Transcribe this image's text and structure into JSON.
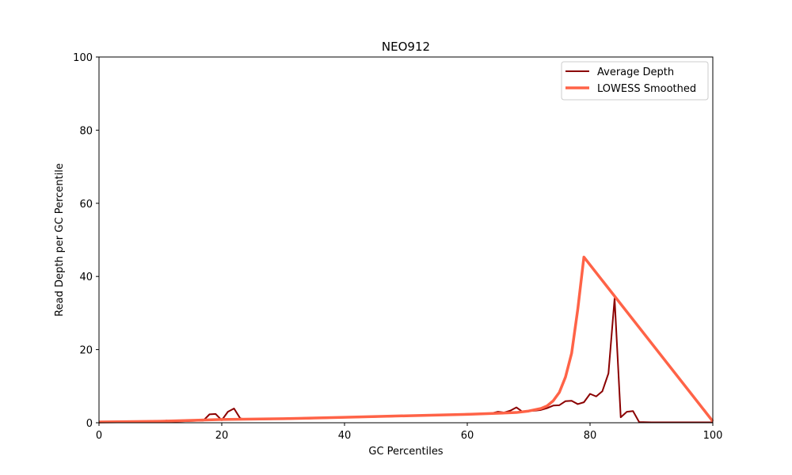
{
  "chart_data": {
    "type": "line",
    "title": "NEO912",
    "xlabel": "GC Percentiles",
    "ylabel": "Read Depth per GC Percentile",
    "xlim": [
      0,
      100
    ],
    "ylim": [
      0,
      100
    ],
    "xticks": [
      "0",
      "20",
      "40",
      "60",
      "80",
      "100"
    ],
    "yticks": [
      "0",
      "20",
      "40",
      "60",
      "80",
      "100"
    ],
    "grid": false,
    "legend_position": "top-right",
    "series": [
      {
        "name": "Average Depth",
        "color": "#8b0000",
        "points": [
          [
            0,
            0.1
          ],
          [
            5,
            0.2
          ],
          [
            10,
            0.3
          ],
          [
            11,
            0.6
          ],
          [
            12,
            0.3
          ],
          [
            15,
            0.5
          ],
          [
            17,
            0.6
          ],
          [
            18,
            2.3
          ],
          [
            19,
            2.4
          ],
          [
            20,
            0.7
          ],
          [
            21,
            3.0
          ],
          [
            22,
            3.9
          ],
          [
            23,
            1.2
          ],
          [
            24,
            0.9
          ],
          [
            30,
            1.0
          ],
          [
            40,
            1.4
          ],
          [
            50,
            1.8
          ],
          [
            60,
            2.4
          ],
          [
            64,
            2.6
          ],
          [
            65,
            3.0
          ],
          [
            66,
            2.8
          ],
          [
            67,
            3.3
          ],
          [
            68,
            4.2
          ],
          [
            69,
            3.0
          ],
          [
            70,
            3.2
          ],
          [
            71,
            3.3
          ],
          [
            72,
            3.5
          ],
          [
            73,
            4.0
          ],
          [
            74,
            4.7
          ],
          [
            75,
            4.8
          ],
          [
            76,
            5.9
          ],
          [
            77,
            6.0
          ],
          [
            78,
            5.1
          ],
          [
            79,
            5.6
          ],
          [
            80,
            7.9
          ],
          [
            81,
            7.2
          ],
          [
            82,
            8.6
          ],
          [
            83,
            13.5
          ],
          [
            84,
            34.0
          ],
          [
            85,
            1.5
          ],
          [
            86,
            3.0
          ],
          [
            87,
            3.2
          ],
          [
            88,
            0.2
          ],
          [
            90,
            0.1
          ],
          [
            95,
            0.1
          ],
          [
            100,
            0.1
          ]
        ]
      },
      {
        "name": "LOWESS Smoothed",
        "color": "#ff6347",
        "points": [
          [
            0,
            0.2
          ],
          [
            10,
            0.4
          ],
          [
            20,
            0.9
          ],
          [
            30,
            1.1
          ],
          [
            40,
            1.5
          ],
          [
            50,
            1.9
          ],
          [
            60,
            2.3
          ],
          [
            65,
            2.6
          ],
          [
            68,
            2.8
          ],
          [
            70,
            3.2
          ],
          [
            72,
            3.9
          ],
          [
            73,
            4.6
          ],
          [
            74,
            6.0
          ],
          [
            75,
            8.3
          ],
          [
            76,
            12.5
          ],
          [
            77,
            19.0
          ],
          [
            78,
            31.0
          ],
          [
            79,
            45.3
          ],
          [
            100,
            0.4
          ]
        ]
      }
    ]
  }
}
